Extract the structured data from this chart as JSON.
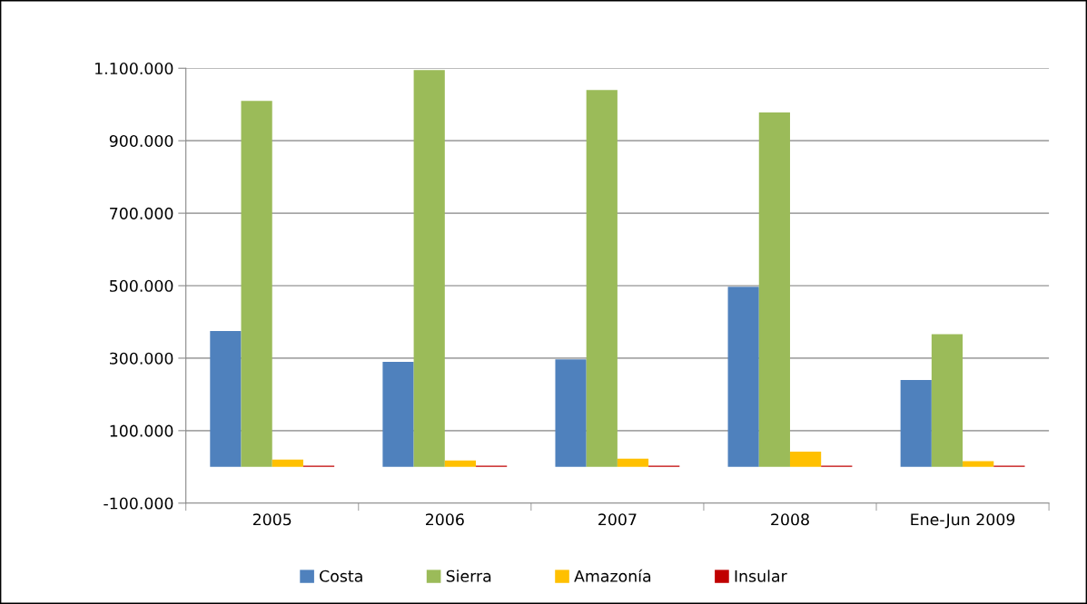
{
  "chart_data": {
    "type": "bar",
    "categories": [
      "2005",
      "2006",
      "2007",
      "2008",
      "Ene-Jun 2009"
    ],
    "series": [
      {
        "name": "Costa",
        "color": "#4f81bd",
        "values": [
          375000,
          290000,
          297000,
          497000,
          240000
        ]
      },
      {
        "name": "Sierra",
        "color": "#9bbb59",
        "values": [
          1010000,
          1095000,
          1040000,
          978000,
          366000
        ]
      },
      {
        "name": "Amazonía",
        "color": "#ffc000",
        "values": [
          20000,
          18000,
          23000,
          42000,
          16000
        ]
      },
      {
        "name": "Insular",
        "color": "#c00000",
        "values": [
          3000,
          3000,
          3000,
          3000,
          3000
        ]
      }
    ],
    "ylim": [
      -100000,
      1100000
    ],
    "yticks": [
      {
        "value": -100000,
        "label": "-100.000"
      },
      {
        "value": 100000,
        "label": "100.000"
      },
      {
        "value": 300000,
        "label": "300.000"
      },
      {
        "value": 500000,
        "label": "500.000"
      },
      {
        "value": 700000,
        "label": "700.000"
      },
      {
        "value": 900000,
        "label": "900.000"
      },
      {
        "value": 1100000,
        "label": "1.100.000"
      }
    ],
    "grid": "y",
    "legend": "bottom"
  }
}
